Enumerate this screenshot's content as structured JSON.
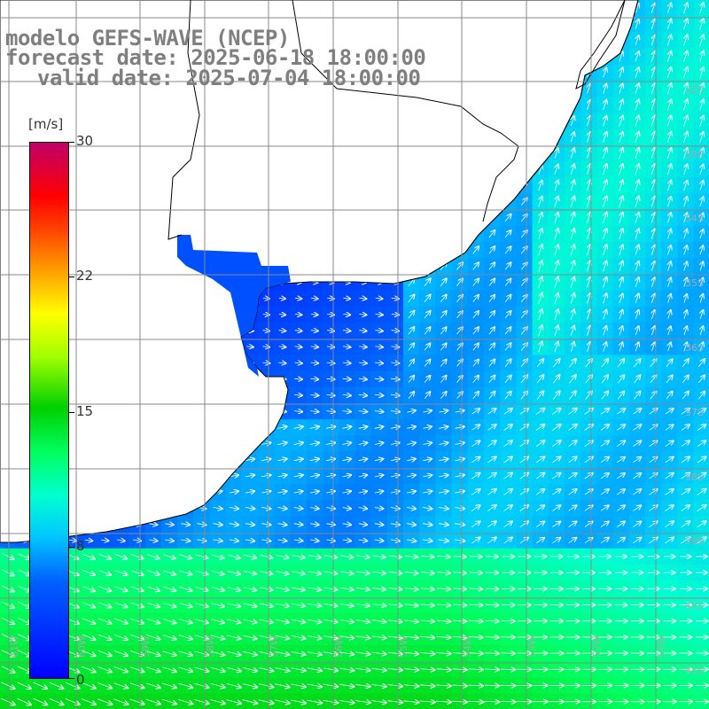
{
  "title": {
    "line1": "modelo GEFS-WAVE (NCEP)",
    "line2": "forecast date: 2025-06-18 18:00:00",
    "line3": "valid date: 2025-07-04 18:00:00"
  },
  "colorbar": {
    "unit": "[m/s]",
    "ticks": [
      "30",
      "22",
      "15",
      "8",
      "0"
    ],
    "tick_values": [
      30,
      22,
      15,
      8,
      0
    ],
    "colors": {
      "low": "#0000ff",
      "mid_low": "#00ffff",
      "mid": "#00d000",
      "mid_high": "#ffff00",
      "high": "#ff0000",
      "top": "#c0006a"
    }
  },
  "map": {
    "region": "Southwest Atlantic / Rio de la Plata",
    "land_color": "#ffffff",
    "coast_color": "#000000",
    "grid_color": "#888888",
    "lat_labels": [
      "32S",
      "33S",
      "34S",
      "35S",
      "36S",
      "37S",
      "38S",
      "39S",
      "40S",
      "41S"
    ],
    "lon_labels": [
      "61W",
      "60W",
      "59W",
      "58W",
      "57W",
      "56W",
      "55W",
      "54W",
      "53W",
      "52W",
      "51W"
    ]
  },
  "chart_data": {
    "type": "heatmap",
    "variable": "wind speed with direction arrows",
    "units": "m/s",
    "vmin": 0,
    "vmax": 30,
    "features": [
      {
        "area": "Rio de la Plata estuary",
        "speed": 3,
        "direction": "east"
      },
      {
        "area": "Offshore Uruguay / south Brazil",
        "speed": 8,
        "direction": "north-northeast"
      },
      {
        "area": "Shelf off Buenos Aires",
        "speed": 7,
        "direction": "east-southeast"
      },
      {
        "area": "South of 39S",
        "speed": 12,
        "direction": "east"
      }
    ]
  }
}
